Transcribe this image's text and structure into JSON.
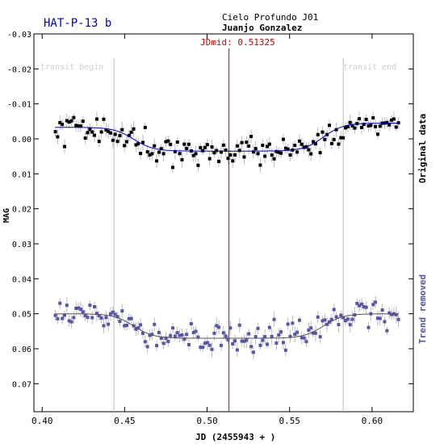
{
  "chart_data": {
    "type": "scatter",
    "title": "HAT-P-13 b",
    "subtitle": "Cielo Profundo J01",
    "observer": "Juanjo Gonzalez",
    "jdmid_label": "JDmid: 0.51325",
    "jdmid": 0.51325,
    "xlabel": "JD (2455943 + )",
    "ylabel": "MAG",
    "right_label_top": "Original data",
    "right_label_bottom": "Trend removed",
    "transit_begin_label": "transit begin",
    "transit_end_label": "transit end",
    "transit_begin": 0.4435,
    "transit_end": 0.5825,
    "xlim": [
      0.395,
      0.625
    ],
    "ylim": [
      -0.03,
      0.078
    ],
    "y_inverted": true,
    "x_ticks": [
      "0.40",
      "0.45",
      "0.50",
      "0.55",
      "0.60"
    ],
    "y_ticks": [
      "-0.03",
      "-0.02",
      "-0.01",
      "0.00",
      "0.01",
      "0.02",
      "0.03",
      "0.04",
      "0.05",
      "0.06",
      "0.07"
    ],
    "x_range": [
      0.408,
      0.616
    ],
    "n_points": 150,
    "series": [
      {
        "name": "Original data",
        "color": "#000000",
        "fit_color": "#0000cc",
        "offset": 0,
        "pre_transit_level": -0.0033,
        "in_transit_level": 0.0035,
        "post_transit_level": -0.0045
      },
      {
        "name": "Trend removed",
        "color": "#5555aa",
        "fit_color": "#555555",
        "offset": 0.0535,
        "pre_transit_level": -0.0035,
        "in_transit_level": 0.0035,
        "post_transit_level": -0.0035
      }
    ],
    "colors": {
      "title": "#0000cc",
      "jdmid": "#cc0000",
      "transit_lines": "#bbbbbb",
      "error_bars": "#bbbbbb",
      "right_label_bottom": "#5555aa"
    }
  }
}
